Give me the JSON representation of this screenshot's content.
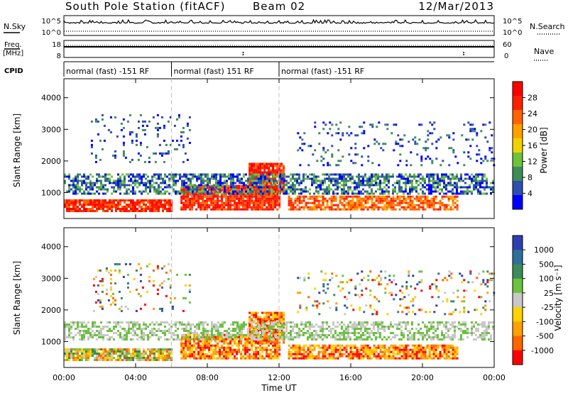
{
  "header": {
    "title": "South Pole Station (fitACF)",
    "beam": "Beam 02",
    "date": "12/Mar/2013"
  },
  "strips": {
    "nsky_label": "N.Sky",
    "nsky_ticks": [
      "10^5",
      "10^0"
    ],
    "nsearch_label": "N.Search",
    "nsearch_ticks": [
      "10^5",
      "10^0"
    ],
    "freq_label": [
      "Freq.",
      "[MHz]"
    ],
    "freq_ticks": [
      "18",
      "8"
    ],
    "nave_label": "Nave",
    "nave_ticks": [
      "60",
      "0"
    ],
    "cpid_label": "CPID",
    "cpid_segments": [
      {
        "text": "normal (fast) -151 RF",
        "start_hour": 0,
        "end_hour": 6
      },
      {
        "text": "normal (fast) 151 RF",
        "start_hour": 6,
        "end_hour": 12
      },
      {
        "text": "normal (fast) -151 RF",
        "start_hour": 12,
        "end_hour": 24
      }
    ]
  },
  "colors": {
    "power": [
      "#0000ff",
      "#2e4fb0",
      "#3c8c5a",
      "#6ec23c",
      "#f0d200",
      "#ffa000",
      "#ff6400",
      "#ff2000",
      "#ff0000"
    ],
    "velocity": [
      "#2d3fb0",
      "#2f6f9a",
      "#3a8a5a",
      "#6bc23c",
      "#c8c8c8",
      "#ffd200",
      "#ffa000",
      "#ff6400",
      "#ff0000"
    ]
  },
  "chart_data": [
    {
      "type": "heatmap",
      "title": "",
      "quantity": "Power",
      "xlabel": "",
      "ylabel": "Slant Range [km]",
      "xlim_hours": [
        0,
        24
      ],
      "ylim": [
        180,
        4600
      ],
      "yticks": [
        "1000",
        "2000",
        "3000",
        "4000"
      ],
      "colorbar": {
        "label": "Power [dB]",
        "ticks": [
          "4",
          "8",
          "12",
          "16",
          "20",
          "24",
          "28"
        ],
        "range": [
          0,
          32
        ]
      },
      "scatter_bands": [
        {
          "t0": 0,
          "t1": 6,
          "r0": 450,
          "r1": 850,
          "level": "strong"
        },
        {
          "t0": 6.5,
          "t1": 12,
          "r0": 500,
          "r1": 1300,
          "level": "strong"
        },
        {
          "t0": 10.3,
          "t1": 12.3,
          "r0": 1000,
          "r1": 2000,
          "level": "strong"
        },
        {
          "t0": 12.5,
          "t1": 22,
          "r0": 500,
          "r1": 950,
          "level": "medium"
        },
        {
          "t0": 0,
          "t1": 24,
          "r0": 1000,
          "r1": 1650,
          "level": "weak"
        },
        {
          "t0": 1.5,
          "t1": 7,
          "r0": 2000,
          "r1": 3500,
          "level": "sparse"
        },
        {
          "t0": 13,
          "t1": 24,
          "r0": 1900,
          "r1": 3300,
          "level": "sparse"
        }
      ]
    },
    {
      "type": "heatmap",
      "title": "",
      "quantity": "Velocity",
      "xlabel": "Time UT",
      "ylabel": "Slant Range [km]",
      "xlim_hours": [
        0,
        24
      ],
      "xticks": [
        "00:00",
        "04:00",
        "08:00",
        "12:00",
        "16:00",
        "20:00",
        "00:00"
      ],
      "ylim": [
        180,
        4600
      ],
      "yticks": [
        "1000",
        "2000",
        "3000",
        "4000"
      ],
      "colorbar": {
        "label": "Velocity [m s⁻¹]",
        "ticks": [
          "1000",
          "500",
          "100",
          "25",
          "-25",
          "-100",
          "-500",
          "-1000"
        ]
      },
      "scatter_bands": [
        {
          "t0": 0,
          "t1": 6,
          "r0": 450,
          "r1": 850,
          "level": "mixed"
        },
        {
          "t0": 6.5,
          "t1": 12,
          "r0": 500,
          "r1": 1300,
          "level": "away"
        },
        {
          "t0": 10.3,
          "t1": 12.3,
          "r0": 1000,
          "r1": 2000,
          "level": "away"
        },
        {
          "t0": 12.5,
          "t1": 22,
          "r0": 500,
          "r1": 950,
          "level": "away"
        },
        {
          "t0": 0,
          "t1": 24,
          "r0": 1100,
          "r1": 1650,
          "level": "ground"
        },
        {
          "t0": 1.5,
          "t1": 7,
          "r0": 2000,
          "r1": 3500,
          "level": "sparse"
        },
        {
          "t0": 13,
          "t1": 24,
          "r0": 1900,
          "r1": 3300,
          "level": "sparse"
        }
      ]
    }
  ]
}
